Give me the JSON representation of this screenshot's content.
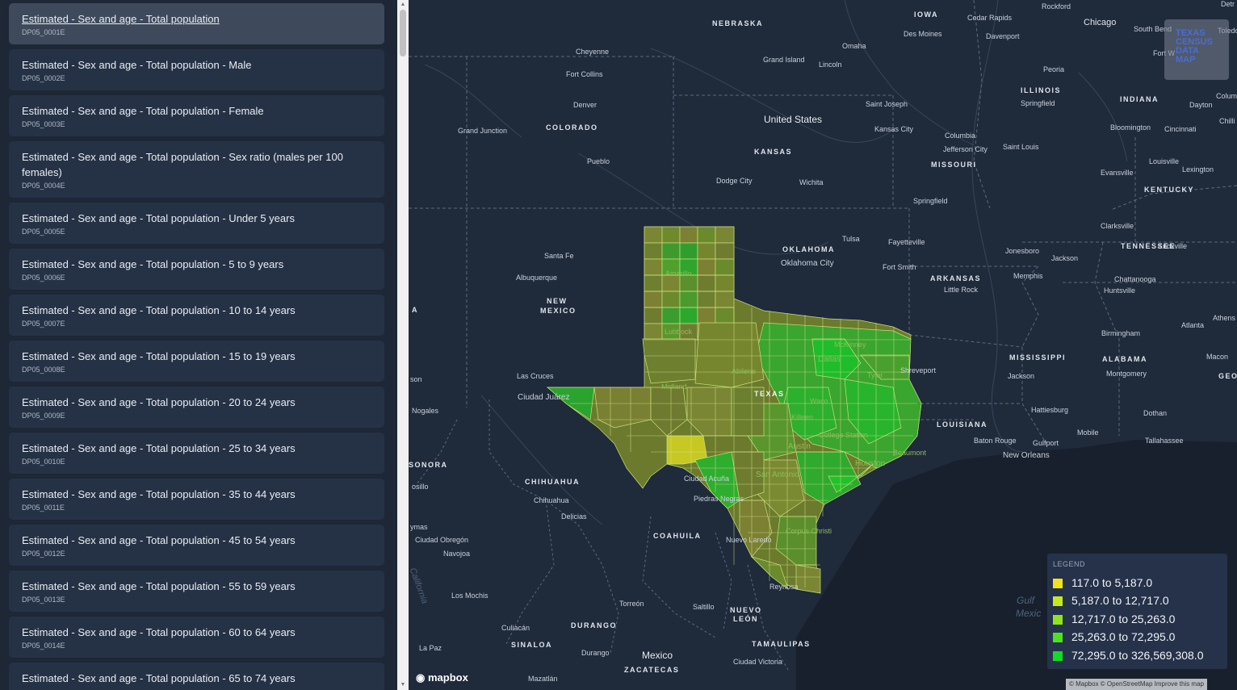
{
  "variables": [
    {
      "label": "Estimated - Sex and age - Total population",
      "code": "DP05_0001E",
      "active": true
    },
    {
      "label": "Estimated - Sex and age - Total population - Male",
      "code": "DP05_0002E"
    },
    {
      "label": "Estimated - Sex and age - Total population - Female",
      "code": "DP05_0003E"
    },
    {
      "label": "Estimated - Sex and age - Total population - Sex ratio (males per 100 females)",
      "code": "DP05_0004E"
    },
    {
      "label": "Estimated - Sex and age - Total population - Under 5 years",
      "code": "DP05_0005E"
    },
    {
      "label": "Estimated - Sex and age - Total population - 5 to 9 years",
      "code": "DP05_0006E"
    },
    {
      "label": "Estimated - Sex and age - Total population - 10 to 14 years",
      "code": "DP05_0007E"
    },
    {
      "label": "Estimated - Sex and age - Total population - 15 to 19 years",
      "code": "DP05_0008E"
    },
    {
      "label": "Estimated - Sex and age - Total population - 20 to 24 years",
      "code": "DP05_0009E"
    },
    {
      "label": "Estimated - Sex and age - Total population - 25 to 34 years",
      "code": "DP05_0010E"
    },
    {
      "label": "Estimated - Sex and age - Total population - 35 to 44 years",
      "code": "DP05_0011E"
    },
    {
      "label": "Estimated - Sex and age - Total population - 45 to 54 years",
      "code": "DP05_0012E"
    },
    {
      "label": "Estimated - Sex and age - Total population - 55 to 59 years",
      "code": "DP05_0013E"
    },
    {
      "label": "Estimated - Sex and age - Total population - 60 to 64 years",
      "code": "DP05_0014E"
    },
    {
      "label": "Estimated - Sex and age - Total population - 65 to 74 years",
      "code": ""
    }
  ],
  "legend": {
    "title": "LEGEND",
    "items": [
      {
        "label": "117.0 to 5,187.0",
        "color": "#f2e21a"
      },
      {
        "label": "5,187.0 to 12,717.0",
        "color": "#c4ea1c"
      },
      {
        "label": "12,717.0 to 25,263.0",
        "color": "#8ee51f"
      },
      {
        "label": "25,263.0 to 72,295.0",
        "color": "#4fe023"
      },
      {
        "label": "72,295.0 to 326,569,308.0",
        "color": "#16d929"
      }
    ]
  },
  "logo": {
    "line1": "TEXAS",
    "line2": "CENSUS",
    "line3": "DATA",
    "line4": "MAP"
  },
  "mapbox_logo": "mapbox",
  "attribution": "© Mapbox © OpenStreetMap  Improve this map",
  "states": {
    "nebraska": "NEBRASKA",
    "iowa": "IOWA",
    "illinois": "ILLINOIS",
    "indiana": "INDIANA",
    "colorado": "COLORADO",
    "kansas": "KANSAS",
    "missouri": "MISSOURI",
    "kentucky": "KENTUCKY",
    "tennessee": "TENNESSEE",
    "oklahoma": "OKLAHOMA",
    "arkansas": "ARKANSAS",
    "new_mexico_1": "NEW",
    "new_mexico_2": "MEXICO",
    "mississippi": "MISSISSIPPI",
    "alabama": "ALABAMA",
    "georgia": "GEORG",
    "texas": "TEXAS",
    "louisiana": "LOUISIANA",
    "sonora": "SONORA",
    "chihuahua": "CHIHUAHUA",
    "coahuila": "COAHUILA",
    "durango": "DURANGO",
    "nuevo_leon_1": "NUEVO",
    "nuevo_leon_2": "LEÓN",
    "tamaulipas": "TAMAULIPAS",
    "sinaloa": "SINALOA",
    "zacatecas": "ZACATECAS",
    "a": "A"
  },
  "countries": {
    "us": "United States",
    "mexico": "Mexico"
  },
  "water": {
    "gulf1": "Gulf",
    "gulf2": "Mexic",
    "california": "California"
  },
  "cities": {
    "rockford": "Rockford",
    "chicago": "Chicago",
    "detroit": "Detr",
    "cedar_rapids": "Cedar Rapids",
    "toledo": "Toledo",
    "south_bend": "South Bend",
    "des_moines": "Des Moines",
    "davenport": "Davenport",
    "fort_wayne": "Fort W",
    "omaha": "Omaha",
    "cheyenne": "Cheyenne",
    "grand_island": "Grand Island",
    "lincoln": "Lincoln",
    "peoria": "Peoria",
    "columbus": "Colum",
    "fort_collins": "Fort Collins",
    "springfield_il": "Springfield",
    "dayton": "Dayton",
    "denver": "Denver",
    "saint_joseph": "Saint Joseph",
    "chilli": "Chilli",
    "grand_junction": "Grand Junction",
    "bloomington": "Bloomington",
    "cincinnati": "Cincinnati",
    "kansas_city": "Kansas City",
    "columbia": "Columbia",
    "jefferson_city": "Jefferson City",
    "saint_louis": "Saint Louis",
    "pueblo": "Pueblo",
    "dodge_city": "Dodge City",
    "wichita": "Wichita",
    "evansville": "Evansville",
    "louisville": "Louisville",
    "lexington": "Lexington",
    "springfield_mo": "Springfield",
    "clarksville": "Clarksville",
    "tulsa": "Tulsa",
    "fayetteville": "Fayetteville",
    "santa_fe": "Santa Fe",
    "jonesboro": "Jonesboro",
    "knoxville": "Knoxville",
    "oklahoma_city": "Oklahoma City",
    "fort_smith": "Fort Smith",
    "jackson_tn": "Jackson",
    "albuquerque": "Albuquerque",
    "amarillo": "Amarillo",
    "memphis": "Memphis",
    "chattanooga": "Chattanooga",
    "little_rock": "Little Rock",
    "huntsville": "Huntsville",
    "athens": "Athens",
    "atlanta": "Atlanta",
    "lubbock": "Lubbock",
    "birmingham": "Birmingham",
    "mckinney": "McKinney",
    "dallas": "Dallas",
    "macon": "Macon",
    "abilene": "Abilene",
    "tyler": "Tyler",
    "shreveport": "Shreveport",
    "las_cruces": "Las Cruces",
    "jackson_ms": "Jackson",
    "montgomery": "Montgomery",
    "son": "son",
    "ciudad_juarez": "Ciudad Juárez",
    "midland": "Midland",
    "waco": "Waco",
    "nogales": "Nogales",
    "killeen": "Killeen",
    "hattiesburg": "Hattiesburg",
    "dothan": "Dothan",
    "college_station": "College Station",
    "mobile": "Mobile",
    "tallahassee": "Tallahassee",
    "austin": "Austin",
    "baton_rouge": "Baton Rouge",
    "gulfport": "Gulfport",
    "beaumont": "Beaumont",
    "new_orleans": "New Orleans",
    "houston": "Houston",
    "san_antonio": "San Antonio",
    "ciudad_acuna": "Ciudad Acuña",
    "hermosillo": "osillo",
    "chihuahua_city": "Chihuahua",
    "piedras_negras": "Piedras Negras",
    "delicias": "Delicias",
    "corpus_christi": "Corpus Christi",
    "guaymas": "ymas",
    "ciudad_obregon": "Ciudad Obregón",
    "nuevo_laredo": "Nuevo Laredo",
    "navojoa": "Navojoa",
    "reynosa": "Reynosa",
    "los_mochis": "Los Mochis",
    "torreon": "Torreón",
    "saltillo": "Saltillo",
    "culiacan": "Culiacán",
    "la_paz": "La Paz",
    "durango_city": "Durango",
    "ciudad_victoria": "Ciudad Victoria",
    "mazatlan": "Mazatlán"
  }
}
